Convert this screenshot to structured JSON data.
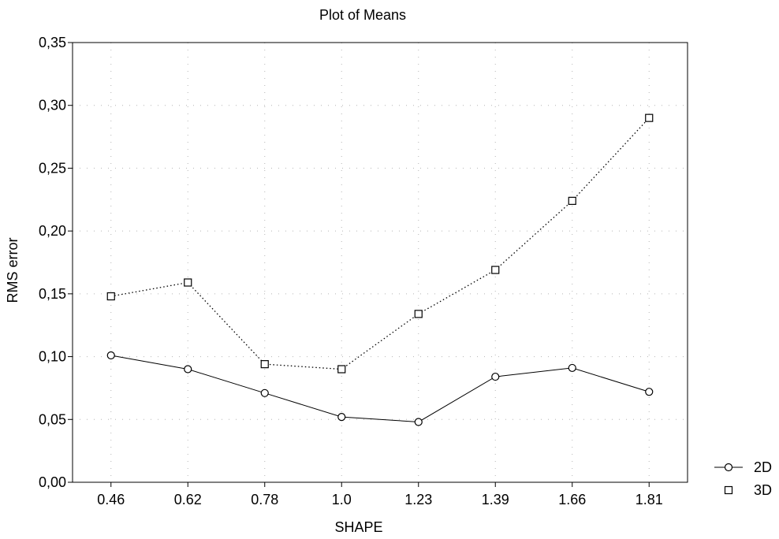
{
  "chart_data": {
    "type": "line",
    "title": "Plot of Means",
    "xlabel": "SHAPE",
    "ylabel": "RMS error",
    "categories": [
      "0.46",
      "0.62",
      "0.78",
      "1.0",
      "1.23",
      "1.39",
      "1.66",
      "1.81"
    ],
    "ylim": [
      0,
      0.35
    ],
    "yticks": [
      "0,00",
      "0,05",
      "0,10",
      "0,15",
      "0,20",
      "0,25",
      "0,30",
      "0,35"
    ],
    "grid": true,
    "legend_position": "bottom-right",
    "series": [
      {
        "name": "2D",
        "marker": "circle",
        "line_style": "solid",
        "values": [
          0.101,
          0.09,
          0.071,
          0.052,
          0.048,
          0.084,
          0.091,
          0.072
        ]
      },
      {
        "name": "3D",
        "marker": "square",
        "line_style": "dotted",
        "values": [
          0.148,
          0.159,
          0.094,
          0.09,
          0.134,
          0.169,
          0.224,
          0.29
        ]
      }
    ]
  }
}
